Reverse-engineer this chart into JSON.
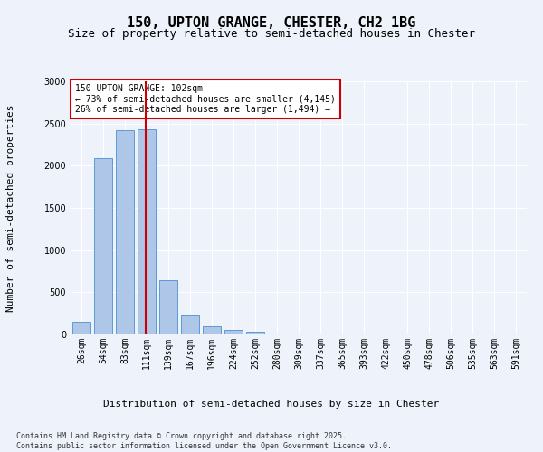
{
  "title1": "150, UPTON GRANGE, CHESTER, CH2 1BG",
  "title2": "Size of property relative to semi-detached houses in Chester",
  "xlabel": "Distribution of semi-detached houses by size in Chester",
  "ylabel": "Number of semi-detached properties",
  "categories": [
    "26sqm",
    "54sqm",
    "83sqm",
    "111sqm",
    "139sqm",
    "167sqm",
    "196sqm",
    "224sqm",
    "252sqm",
    "280sqm",
    "309sqm",
    "337sqm",
    "365sqm",
    "393sqm",
    "422sqm",
    "450sqm",
    "478sqm",
    "506sqm",
    "535sqm",
    "563sqm",
    "591sqm"
  ],
  "values": [
    155,
    2090,
    2420,
    2430,
    640,
    230,
    95,
    55,
    30,
    5,
    5,
    5,
    5,
    0,
    0,
    0,
    0,
    0,
    0,
    0,
    0
  ],
  "bar_color": "#aec6e8",
  "bar_edge_color": "#5b9bd5",
  "vline_x_index": 3,
  "vline_color": "#cc0000",
  "annotation_box_text": "150 UPTON GRANGE: 102sqm\n← 73% of semi-detached houses are smaller (4,145)\n26% of semi-detached houses are larger (1,494) →",
  "annotation_box_color": "#cc0000",
  "ylim": [
    0,
    3000
  ],
  "yticks": [
    0,
    500,
    1000,
    1500,
    2000,
    2500,
    3000
  ],
  "footer_text": "Contains HM Land Registry data © Crown copyright and database right 2025.\nContains public sector information licensed under the Open Government Licence v3.0.",
  "background_color": "#eef2fb",
  "plot_bg_color": "#eef2fb",
  "title1_fontsize": 11,
  "title2_fontsize": 9,
  "xlabel_fontsize": 8,
  "ylabel_fontsize": 8,
  "tick_fontsize": 7,
  "footer_fontsize": 6,
  "annotation_fontsize": 7
}
